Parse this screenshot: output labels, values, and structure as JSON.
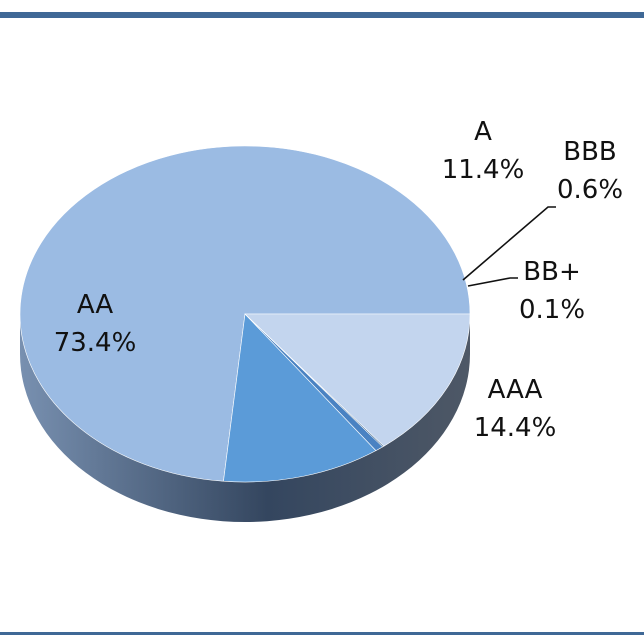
{
  "colors": {
    "rule": "#3F6896",
    "top_face": "#9BBBE3",
    "side_light": "#788FAF",
    "side_dark": "#2D3E57"
  },
  "chart_data": {
    "type": "pie",
    "title": "",
    "three_d": true,
    "start": "AA slice begins at the horizontal right (3 o'clock) and proceeds counter-clockwise",
    "slices": [
      {
        "label": "AA",
        "value": 73.4,
        "value_text": "73.4%",
        "color": "#9BBBE3"
      },
      {
        "label": "A",
        "value": 11.4,
        "value_text": "11.4%",
        "color": "#5B9BD8"
      },
      {
        "label": "BBB",
        "value": 0.6,
        "value_text": "0.6%",
        "color": "#4A82C2"
      },
      {
        "label": "BB+",
        "value": 0.1,
        "value_text": "0.1%",
        "color": "#1F4E79"
      },
      {
        "label": "AAA",
        "value": 14.4,
        "value_text": "14.4%",
        "color": "#C3D5EE"
      }
    ]
  }
}
